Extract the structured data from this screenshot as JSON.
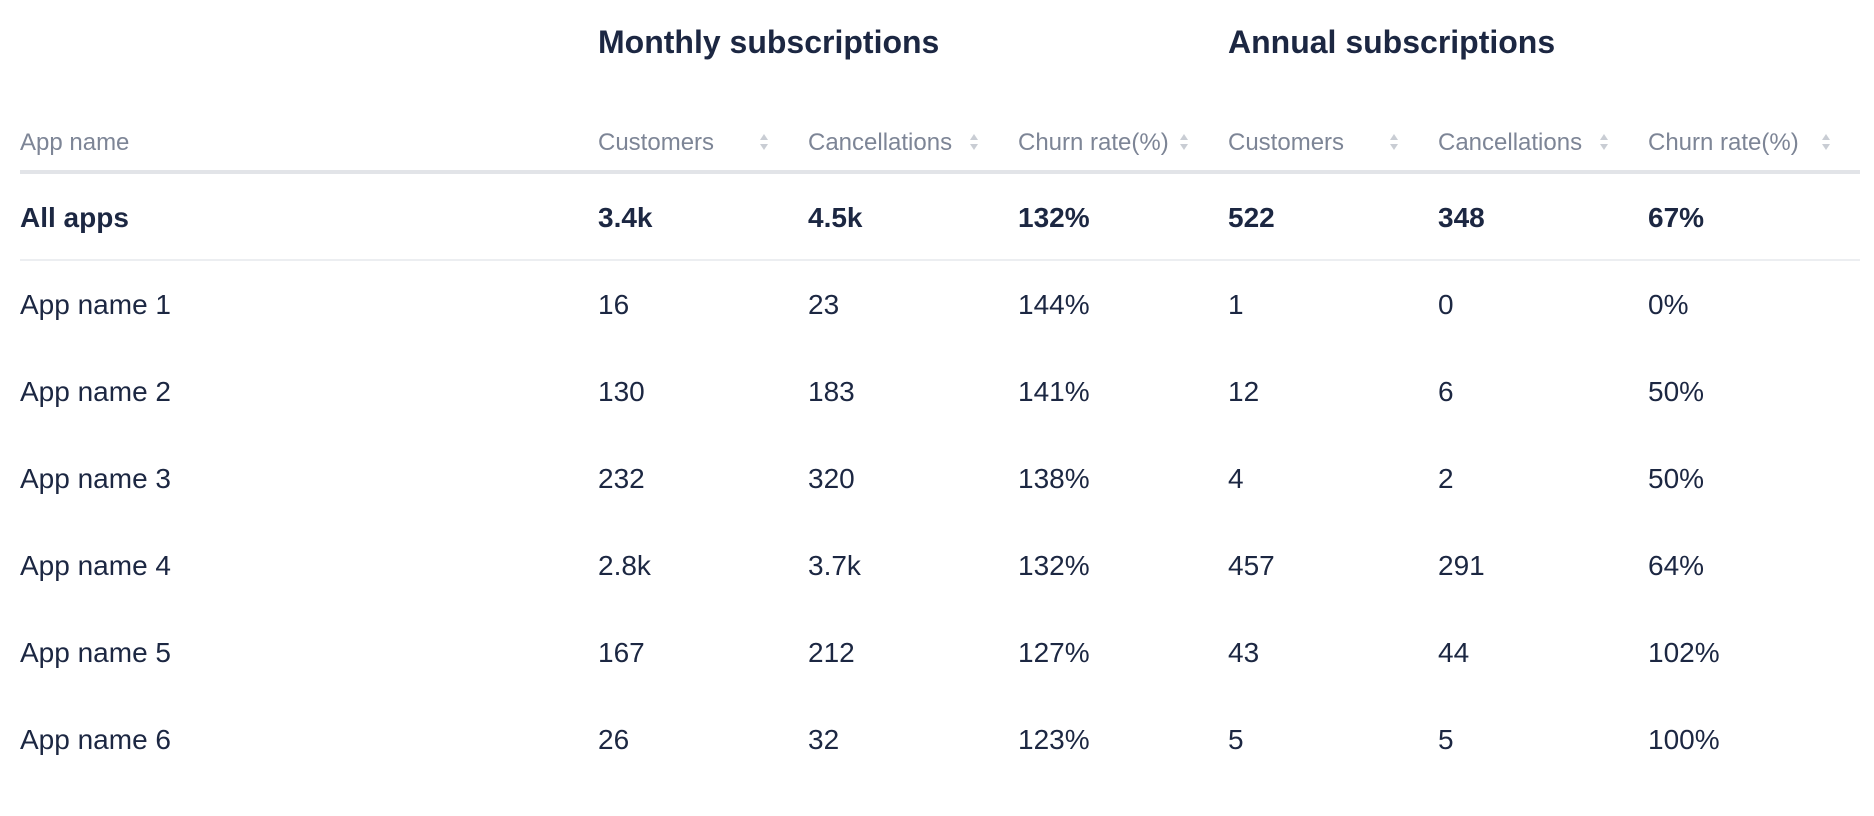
{
  "groups": {
    "monthly": "Monthly subscriptions",
    "annual": "Annual subscriptions"
  },
  "columns": {
    "app_name": "App name",
    "monthly_customers": "Customers",
    "monthly_cancellations": "Cancellations",
    "monthly_churn": "Churn rate(%)",
    "annual_customers": "Customers",
    "annual_cancellations": "Cancellations",
    "annual_churn": "Churn rate(%)"
  },
  "icons": {
    "sort": "sort-icon"
  },
  "colors": {
    "text": "#1c2742",
    "header_text": "#7d8596",
    "divider": "#e2e4e8",
    "sort_icon": "#c9cdd4"
  },
  "total": {
    "name": "All apps",
    "monthly_customers": "3.4k",
    "monthly_cancellations": "4.5k",
    "monthly_churn": "132%",
    "annual_customers": "522",
    "annual_cancellations": "348",
    "annual_churn": "67%"
  },
  "rows": [
    {
      "name": "App name 1",
      "monthly_customers": "16",
      "monthly_cancellations": "23",
      "monthly_churn": "144%",
      "annual_customers": "1",
      "annual_cancellations": "0",
      "annual_churn": "0%"
    },
    {
      "name": "App name 2",
      "monthly_customers": "130",
      "monthly_cancellations": "183",
      "monthly_churn": "141%",
      "annual_customers": "12",
      "annual_cancellations": "6",
      "annual_churn": "50%"
    },
    {
      "name": "App name 3",
      "monthly_customers": "232",
      "monthly_cancellations": "320",
      "monthly_churn": "138%",
      "annual_customers": "4",
      "annual_cancellations": "2",
      "annual_churn": "50%"
    },
    {
      "name": "App name 4",
      "monthly_customers": "2.8k",
      "monthly_cancellations": "3.7k",
      "monthly_churn": "132%",
      "annual_customers": "457",
      "annual_cancellations": "291",
      "annual_churn": "64%"
    },
    {
      "name": "App name 5",
      "monthly_customers": "167",
      "monthly_cancellations": "212",
      "monthly_churn": "127%",
      "annual_customers": "43",
      "annual_cancellations": "44",
      "annual_churn": "102%"
    },
    {
      "name": "App name 6",
      "monthly_customers": "26",
      "monthly_cancellations": "32",
      "monthly_churn": "123%",
      "annual_customers": "5",
      "annual_cancellations": "5",
      "annual_churn": "100%"
    }
  ]
}
